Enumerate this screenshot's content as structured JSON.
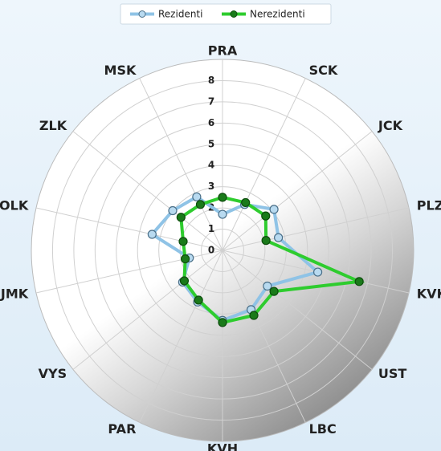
{
  "chart_data": {
    "type": "radar",
    "categories": [
      "PRA",
      "SCK",
      "JCK",
      "PLZ",
      "KVK",
      "UST",
      "LBC",
      "KVH",
      "PAR",
      "VYS",
      "JMK",
      "OLK",
      "ZLK",
      "MSK"
    ],
    "series": [
      {
        "name": "Rezidenti",
        "color": "#8fc3e6",
        "values": [
          1.7,
          2.4,
          3.1,
          2.7,
          4.6,
          2.7,
          3.1,
          3.3,
          2.7,
          2.4,
          1.6,
          3.4,
          3.0,
          2.8
        ]
      },
      {
        "name": "Nerezidenti",
        "color": "#2ecc2e",
        "values": [
          2.5,
          2.5,
          2.6,
          2.1,
          6.6,
          3.1,
          3.4,
          3.4,
          2.6,
          2.3,
          1.8,
          1.9,
          2.5,
          2.4
        ]
      }
    ],
    "ylim": [
      0,
      9
    ],
    "yticks": [
      0,
      1,
      2,
      3,
      4,
      5,
      6,
      7,
      8
    ],
    "grid": true,
    "legend": "top"
  }
}
